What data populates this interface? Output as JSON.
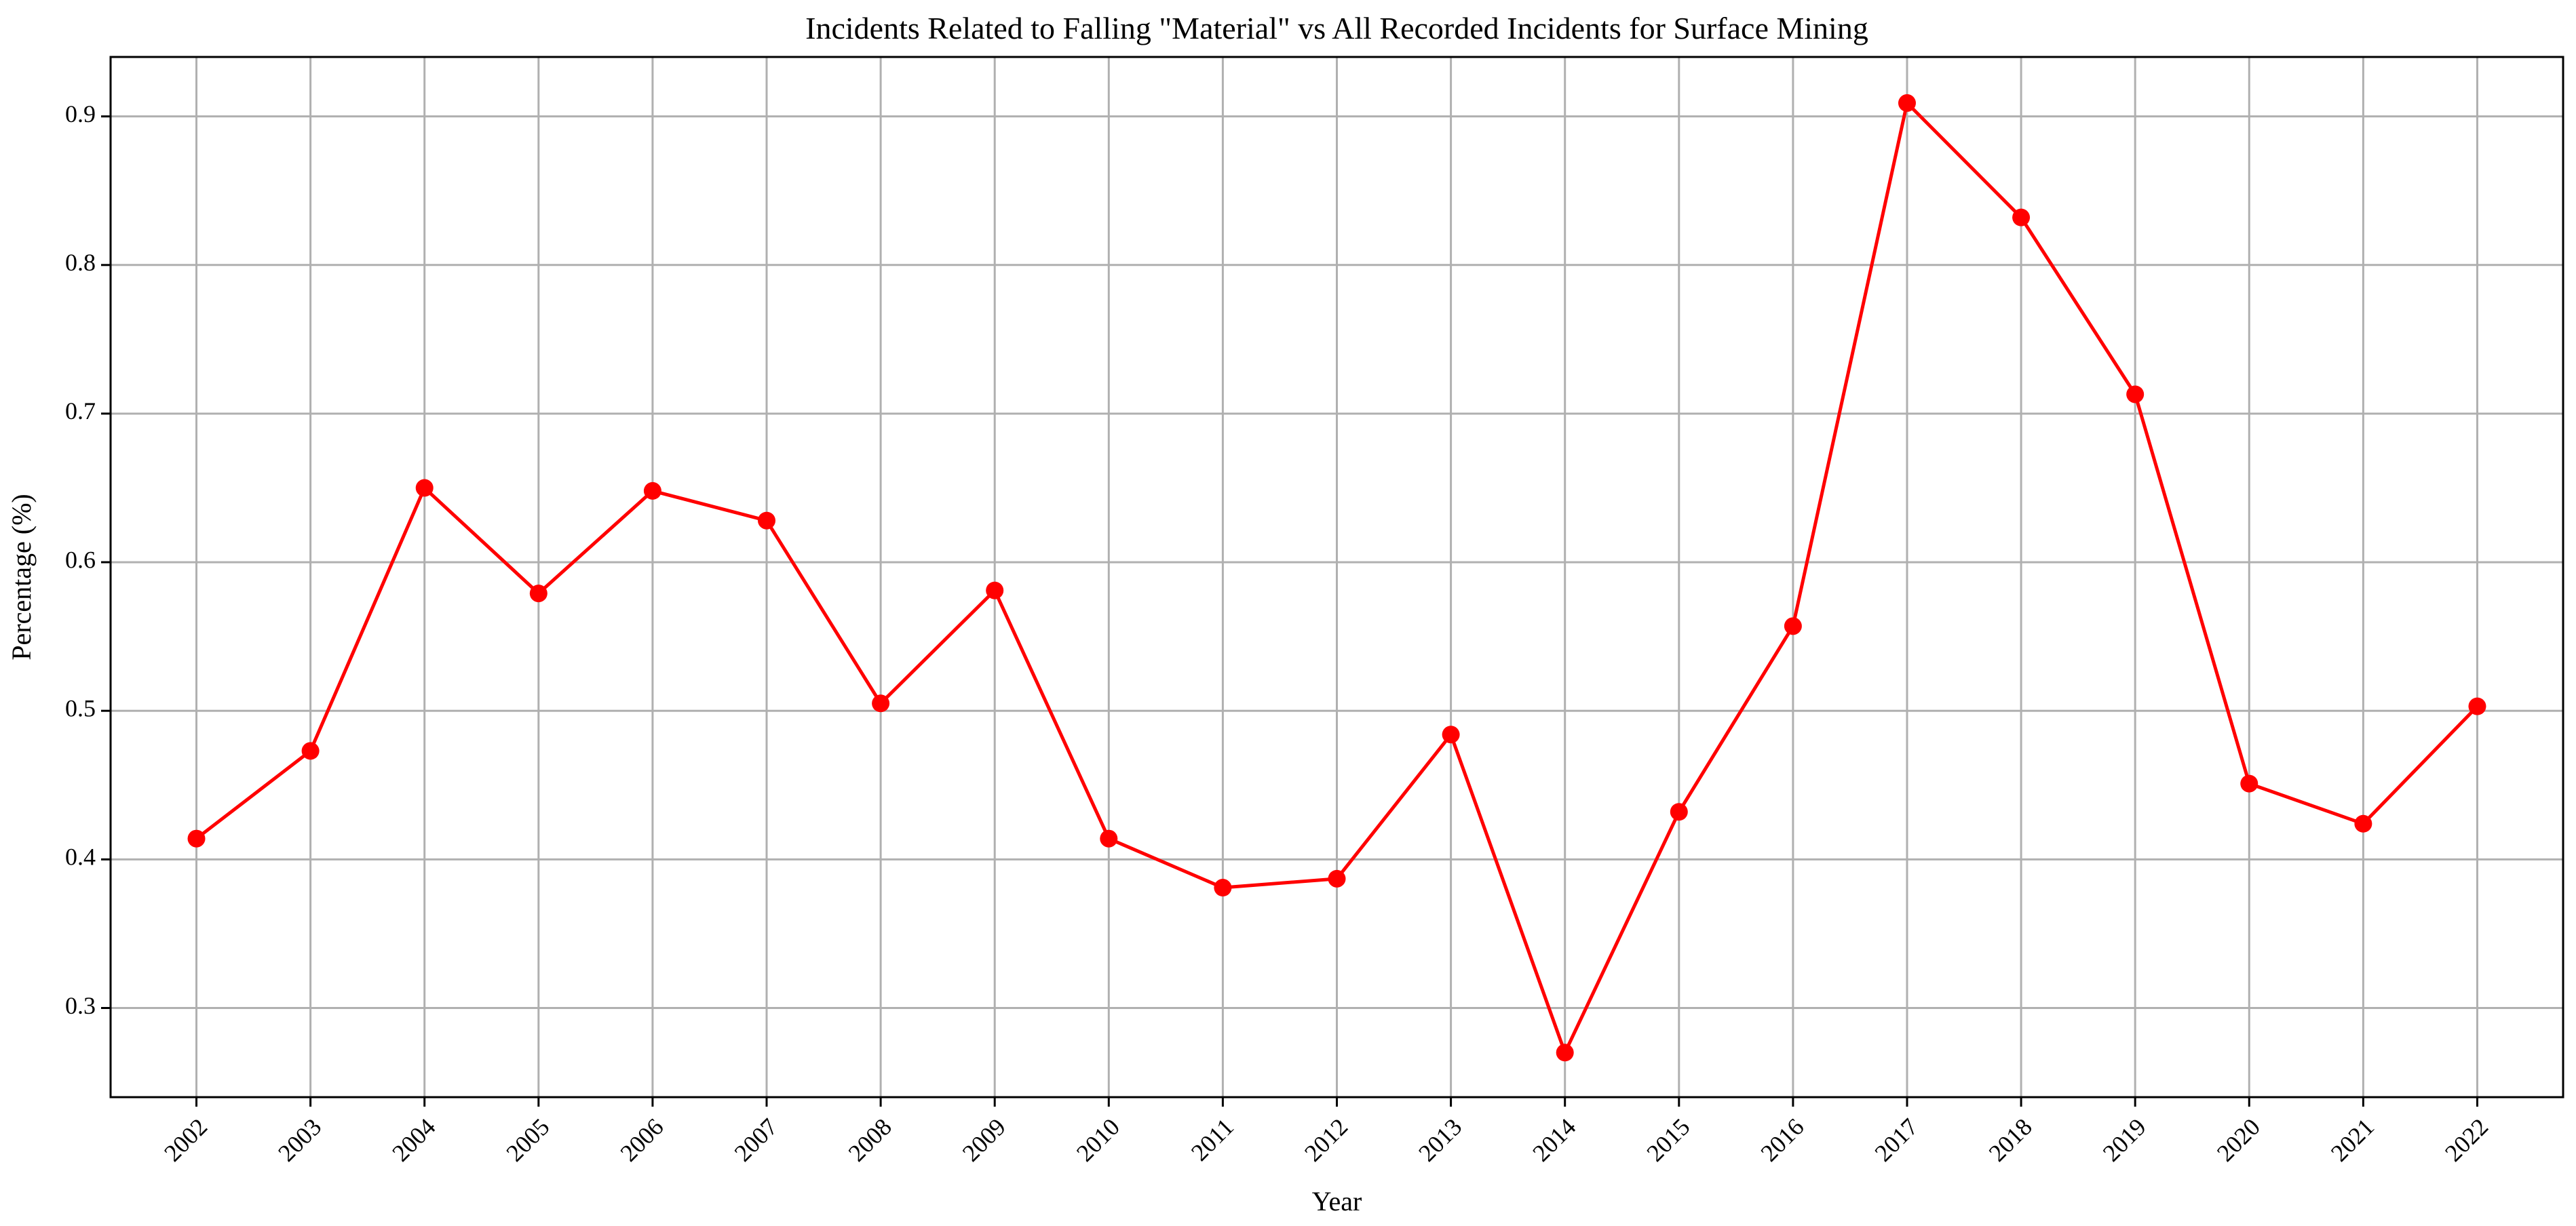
{
  "chart_data": {
    "type": "line",
    "title": "Incidents Related to Falling \"Material\" vs All Recorded Incidents for Surface Mining",
    "xlabel": "Year",
    "ylabel": "Percentage (%)",
    "categories": [
      "2002",
      "2003",
      "2004",
      "2005",
      "2006",
      "2007",
      "2008",
      "2009",
      "2010",
      "2011",
      "2012",
      "2013",
      "2014",
      "2015",
      "2016",
      "2017",
      "2018",
      "2019",
      "2020",
      "2021",
      "2022"
    ],
    "series": [
      {
        "values": [
          0.414,
          0.473,
          0.65,
          0.579,
          0.648,
          0.628,
          0.505,
          0.581,
          0.414,
          0.381,
          0.387,
          0.484,
          0.27,
          0.432,
          0.557,
          0.909,
          0.832,
          0.713,
          0.451,
          0.424,
          0.503
        ],
        "color": "#ff0000",
        "marker": "circle"
      }
    ],
    "ylim": [
      0.24,
      0.94
    ],
    "yticks": [
      0.3,
      0.4,
      0.5,
      0.6,
      0.7,
      0.8,
      0.9
    ],
    "ytick_labels": [
      "0.3",
      "0.4",
      "0.5",
      "0.6",
      "0.7",
      "0.8",
      "0.9"
    ],
    "grid": true,
    "legend": "none"
  }
}
